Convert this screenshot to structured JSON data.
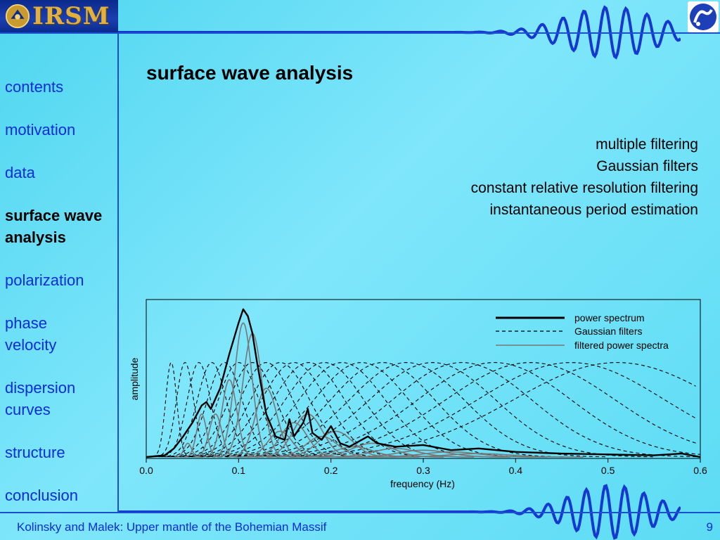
{
  "logo": {
    "text": "IRSM"
  },
  "sidebar": {
    "items": [
      {
        "label": "contents",
        "active": false
      },
      {
        "label": "motivation",
        "active": false
      },
      {
        "label": "data",
        "active": false
      },
      {
        "label": "surface wave\nanalysis",
        "active": true
      },
      {
        "label": "polarization",
        "active": false
      },
      {
        "label": "phase\nvelocity",
        "active": false
      },
      {
        "label": "dispersion\ncurves",
        "active": false
      },
      {
        "label": "structure",
        "active": false
      },
      {
        "label": "conclusion",
        "active": false
      }
    ]
  },
  "slide": {
    "title": "surface wave analysis",
    "bullets": [
      "multiple filtering",
      "Gaussian filters",
      "constant relative resolution filtering",
      "instantaneous period estimation"
    ]
  },
  "footer": {
    "text": "Kolinsky and Malek: Upper mantle of the Bohemian Massif",
    "page": "9"
  },
  "colors": {
    "background": "#5cdcf4",
    "nav_link": "#0a2bd8",
    "rule": "#1a4fd0"
  },
  "chart_data": {
    "type": "line",
    "xlabel": "frequency (Hz)",
    "ylabel": "amplitude",
    "xlim": [
      0.0,
      0.6
    ],
    "x_ticks": [
      "0.0",
      "0.1",
      "0.2",
      "0.3",
      "0.4",
      "0.5",
      "0.6"
    ],
    "y_ticks": [],
    "legend_position": "top-right",
    "series": [
      {
        "name": "power spectrum",
        "style": "solid-black-thick",
        "x": [
          0.0,
          0.02,
          0.03,
          0.04,
          0.05,
          0.06,
          0.065,
          0.07,
          0.08,
          0.09,
          0.1,
          0.105,
          0.11,
          0.115,
          0.12,
          0.13,
          0.14,
          0.15,
          0.155,
          0.16,
          0.17,
          0.175,
          0.18,
          0.19,
          0.2,
          0.21,
          0.22,
          0.24,
          0.25,
          0.27,
          0.3,
          0.33,
          0.36,
          0.4,
          0.45,
          0.5,
          0.55,
          0.58,
          0.6
        ],
        "y": [
          0.0,
          0.01,
          0.05,
          0.12,
          0.2,
          0.3,
          0.32,
          0.28,
          0.4,
          0.6,
          0.78,
          0.86,
          0.82,
          0.72,
          0.55,
          0.25,
          0.12,
          0.1,
          0.22,
          0.12,
          0.2,
          0.28,
          0.14,
          0.1,
          0.18,
          0.08,
          0.06,
          0.12,
          0.08,
          0.06,
          0.07,
          0.04,
          0.05,
          0.03,
          0.02,
          0.015,
          0.01,
          0.02,
          0.0
        ]
      },
      {
        "name": "Gaussian filters",
        "style": "dashed-black",
        "centers": [
          0.027,
          0.042,
          0.057,
          0.071,
          0.085,
          0.1,
          0.115,
          0.13,
          0.145,
          0.16,
          0.176,
          0.193,
          0.212,
          0.233,
          0.256,
          0.282,
          0.31,
          0.342,
          0.377,
          0.416,
          0.46,
          0.51
        ],
        "peak": 0.55
      },
      {
        "name": "filtered power spectra",
        "style": "solid-gray",
        "centers": [
          0.045,
          0.06,
          0.075,
          0.09,
          0.105,
          0.115,
          0.13,
          0.145,
          0.16,
          0.175,
          0.19,
          0.205,
          0.225,
          0.245,
          0.27,
          0.3,
          0.33,
          0.36
        ],
        "peaks": [
          0.08,
          0.25,
          0.25,
          0.45,
          0.78,
          0.72,
          0.4,
          0.15,
          0.2,
          0.25,
          0.12,
          0.15,
          0.06,
          0.08,
          0.05,
          0.04,
          0.03,
          0.02
        ]
      }
    ]
  }
}
